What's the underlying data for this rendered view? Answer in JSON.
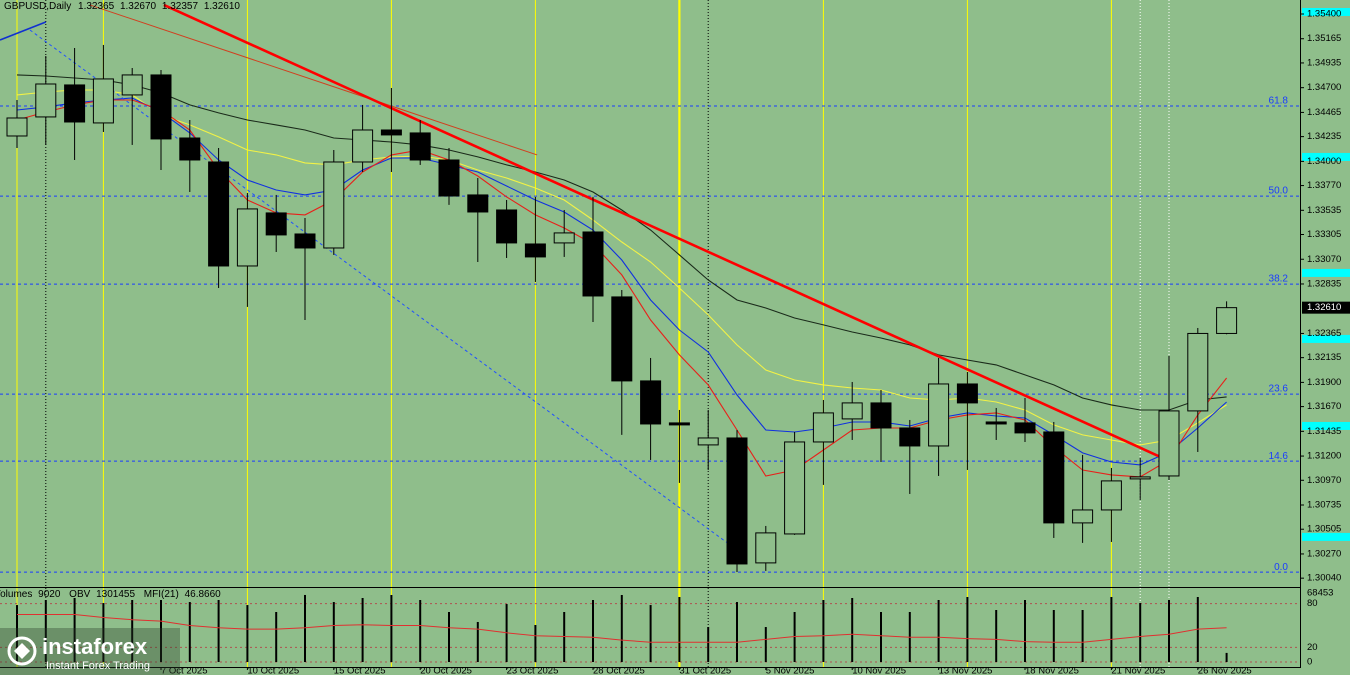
{
  "chart_data": [
    {
      "type": "candlestick",
      "symbol": "GBPUSD,Daily",
      "quote_labels": [
        "1.32365",
        "1.32670",
        "1.32357",
        "1.32610"
      ],
      "categories": [
        null,
        null,
        null,
        null,
        null,
        "7 Oct 2025",
        null,
        null,
        "10 Oct 2025",
        null,
        null,
        "15 Oct 2025",
        null,
        null,
        "20 Oct 2025",
        null,
        null,
        "23 Oct 2025",
        null,
        null,
        "28 Oct 2025",
        null,
        null,
        "31 Oct 2025",
        null,
        null,
        "5 Nov 2025",
        null,
        null,
        "10 Nov 2025",
        null,
        null,
        "13 Nov 2025",
        null,
        null,
        "18 Nov 2025",
        null,
        null,
        "21 Nov 2025",
        null,
        null,
        "26 Nov 2025",
        null
      ],
      "open": [
        1.34241,
        1.34422,
        1.34726,
        1.34365,
        1.34631,
        1.34821,
        1.34222,
        1.33994,
        1.33006,
        1.3351,
        1.3331,
        1.33177,
        1.33994,
        1.34298,
        1.3427,
        1.34013,
        1.33681,
        1.33538,
        1.33215,
        1.33225,
        1.33329,
        1.32712,
        1.31914,
        1.31515,
        1.31306,
        1.31372,
        1.30185,
        1.3046,
        1.31334,
        1.31553,
        1.31705,
        1.31467,
        1.31296,
        1.31885,
        1.31524,
        1.31515,
        1.31429,
        1.30565,
        1.30688,
        1.30983,
        1.31011,
        1.31629,
        1.32365
      ],
      "high": [
        1.34583,
        1.35001,
        1.35077,
        1.35106,
        1.34887,
        1.34868,
        1.34393,
        1.34127,
        1.337,
        1.33681,
        1.33462,
        1.34108,
        1.34536,
        1.34697,
        1.34393,
        1.34127,
        1.33842,
        1.33633,
        1.33662,
        1.33538,
        1.33662,
        1.32778,
        1.32132,
        1.31638,
        1.31638,
        1.31448,
        1.30536,
        1.31429,
        1.31733,
        1.31904,
        1.31828,
        1.31543,
        1.32132,
        1.31999,
        1.31657,
        1.31752,
        1.31524,
        1.31211,
        1.31087,
        1.31182,
        1.32151,
        1.32417,
        1.3267
      ],
      "low": [
        1.34127,
        1.34156,
        1.34013,
        1.34279,
        1.34156,
        1.33918,
        1.33709,
        1.32797,
        1.32617,
        1.33139,
        1.32493,
        1.33111,
        1.33899,
        1.33899,
        1.33966,
        1.33586,
        1.33044,
        1.33082,
        1.32854,
        1.33092,
        1.32474,
        1.31401,
        1.31163,
        1.30945,
        1.31068,
        1.30099,
        1.30109,
        1.30451,
        1.30926,
        1.31353,
        1.31144,
        1.3084,
        1.31011,
        1.31068,
        1.31353,
        1.31334,
        1.30422,
        1.30375,
        1.30384,
        1.30783,
        1.30973,
        1.31239,
        1.32357
      ],
      "close": [
        1.34412,
        1.34735,
        1.34374,
        1.34783,
        1.34821,
        1.34213,
        1.34013,
        1.33006,
        1.33548,
        1.33301,
        1.33177,
        1.33994,
        1.34298,
        1.34251,
        1.34013,
        1.33671,
        1.33519,
        1.33225,
        1.33092,
        1.3332,
        1.32721,
        1.31914,
        1.31505,
        1.31496,
        1.31372,
        1.30175,
        1.3047,
        1.31334,
        1.3161,
        1.31705,
        1.31467,
        1.31296,
        1.31885,
        1.31705,
        1.31505,
        1.3142,
        1.30565,
        1.30688,
        1.30964,
        1.31002,
        1.31629,
        1.32365,
        1.3261
      ],
      "up_color": "#8fbe8b",
      "down_color": "#000000",
      "ylim": [
        1.29956,
        1.35533
      ],
      "yticks": [
        {
          "value": 1.354,
          "label": "1.35400"
        },
        {
          "value": 1.35165,
          "label": "1.35165"
        },
        {
          "value": 1.34935,
          "label": "1.34935"
        },
        {
          "value": 1.347,
          "label": "1.34700"
        },
        {
          "value": 1.34465,
          "label": "1.34465"
        },
        {
          "value": 1.34235,
          "label": "1.34235"
        },
        {
          "value": 1.34,
          "label": "1.34000"
        },
        {
          "value": 1.3377,
          "label": "1.33770"
        },
        {
          "value": 1.33535,
          "label": "1.33535"
        },
        {
          "value": 1.33305,
          "label": "1.33305"
        },
        {
          "value": 1.3307,
          "label": "1.33070"
        },
        {
          "value": 1.32835,
          "label": "1.32835"
        },
        {
          "value": 1.32365,
          "label": "1.32365"
        },
        {
          "value": 1.32135,
          "label": "1.32135"
        },
        {
          "value": 1.319,
          "label": "1.31900"
        },
        {
          "value": 1.3167,
          "label": "1.31670"
        },
        {
          "value": 1.31435,
          "label": "1.31435"
        },
        {
          "value": 1.312,
          "label": "1.31200"
        },
        {
          "value": 1.3097,
          "label": "1.30970"
        },
        {
          "value": 1.30735,
          "label": "1.30735"
        },
        {
          "value": 1.30505,
          "label": "1.30505"
        },
        {
          "value": 1.3027,
          "label": "1.30270"
        },
        {
          "value": 1.3004,
          "label": "1.30040"
        }
      ],
      "level_markers": [
        1.35419,
        1.34042,
        1.3294,
        1.32313,
        1.31486,
        1.30432
      ],
      "level_marker_color": "#00ffff",
      "fib_levels": [
        {
          "label": "61.8",
          "value": 1.34526
        },
        {
          "label": "50.0",
          "value": 1.3367
        },
        {
          "label": "38.2",
          "value": 1.32834
        },
        {
          "label": "23.6",
          "value": 1.31789
        },
        {
          "label": "14.6",
          "value": 1.31152
        },
        {
          "label": "0.0",
          "value": 1.30097
        }
      ],
      "fib_color": "#1a3cff",
      "lines": [
        {
          "color": "#1a2a1a",
          "values": [
            1.34821,
            1.34811,
            1.34792,
            1.34773,
            1.34726,
            1.3465,
            1.34536,
            1.3446,
            1.34393,
            1.34346,
            1.34298,
            1.34222,
            1.34203,
            1.34184,
            1.34156,
            1.34108,
            1.34042,
            1.33966,
            1.33899,
            1.33823,
            1.33709,
            1.33538,
            1.33348,
            1.33111,
            1.32873,
            1.32683,
            1.32607,
            1.32512,
            1.32446,
            1.32379,
            1.32322,
            1.32256,
            1.32161,
            1.32113,
            1.32066,
            1.31971,
            1.31876,
            1.31752,
            1.31686,
            1.31638,
            1.31638,
            1.31733,
            1.31762
          ]
        },
        {
          "color": "#f2f246",
          "values": [
            1.34631,
            1.34659,
            1.34678,
            1.34678,
            1.34631,
            1.34441,
            1.34346,
            1.34232,
            1.34108,
            1.34061,
            1.33985,
            1.33966,
            1.34013,
            1.34042,
            1.34051,
            1.34013,
            1.33918,
            1.33842,
            1.33747,
            1.33633,
            1.33443,
            1.33234,
            1.33044,
            1.32797,
            1.32541,
            1.32256,
            1.32018,
            1.31923,
            1.31876,
            1.31847,
            1.31828,
            1.31752,
            1.31733,
            1.31752,
            1.31714,
            1.31638,
            1.31496,
            1.31401,
            1.31353,
            1.31306,
            1.31353,
            1.31515,
            1.31686
          ]
        },
        {
          "color": "#1030e0",
          "values": [
            1.34488,
            1.34517,
            1.34555,
            1.34583,
            1.34602,
            1.34469,
            1.3427,
            1.34013,
            1.33823,
            1.33728,
            1.33681,
            1.33728,
            1.33918,
            1.34032,
            1.34032,
            1.33966,
            1.33899,
            1.33766,
            1.33633,
            1.33519,
            1.33348,
            1.33063,
            1.32683,
            1.32398,
            1.32189,
            1.31781,
            1.31448,
            1.31429,
            1.31467,
            1.31524,
            1.31524,
            1.31486,
            1.31562,
            1.3161,
            1.31581,
            1.31562,
            1.31401,
            1.3123,
            1.31144,
            1.31116,
            1.31239,
            1.31467,
            1.31714
          ]
        },
        {
          "color": "#e8201a",
          "values": [
            1.34393,
            1.34469,
            1.34536,
            1.34583,
            1.34583,
            1.34488,
            1.34298,
            1.33918,
            1.33633,
            1.3351,
            1.33491,
            1.33633,
            1.33899,
            1.34061,
            1.34108,
            1.34013,
            1.33861,
            1.33662,
            1.33491,
            1.33367,
            1.33215,
            1.32921,
            1.32493,
            1.32161,
            1.31876,
            1.31448,
            1.31011,
            1.31068,
            1.31258,
            1.31448,
            1.31467,
            1.31467,
            1.31543,
            1.31591,
            1.3161,
            1.31543,
            1.31287,
            1.31068,
            1.31021,
            1.31002,
            1.31163,
            1.31591,
            1.31942
          ]
        }
      ],
      "trendlines": [
        {
          "color": "#d04020",
          "width": 1,
          "dash": "none",
          "x": [
            2.53,
            18.06
          ],
          "y": [
            1.35486,
            1.34061
          ]
        },
        {
          "color": "#2050ff",
          "width": 1,
          "dash": "3,3",
          "x": [
            0.45,
            24.76
          ],
          "y": [
            1.35248,
            1.30356
          ]
        },
        {
          "color": "#1030d0",
          "width": 1.6,
          "dash": "none",
          "x": [
            -0.59,
            1.0
          ],
          "y": [
            1.35153,
            1.35324
          ]
        },
        {
          "color": "#ff0000",
          "width": 2.6,
          "dash": "none",
          "x": [
            5.1,
            39.7
          ],
          "y": [
            1.35486,
            1.31192
          ]
        }
      ],
      "grid": false
    },
    {
      "type": "indicator",
      "legend": [
        {
          "name": "Volumes",
          "value": 9020
        },
        {
          "name": "OBV",
          "value": 1301455
        },
        {
          "name": "MFI(21)",
          "value": 46.866,
          "label": "46.8660"
        }
      ],
      "volumes": [
        56500,
        61500,
        63500,
        58500,
        61500,
        61500,
        59500,
        61500,
        56500,
        49600,
        66500,
        59500,
        63500,
        66500,
        61500,
        49600,
        39700,
        57500,
        36700,
        49600,
        61500,
        66500,
        56500,
        64500,
        34700,
        59500,
        34700,
        49600,
        61500,
        63500,
        49600,
        49600,
        61500,
        64500,
        51600,
        61500,
        51600,
        51600,
        64500,
        58500,
        61500,
        64500,
        9020
      ],
      "volume_color": "#000000",
      "volume_ylim": [
        0,
        68453
      ],
      "mfi": [
        65,
        65,
        65,
        61,
        58,
        56,
        50,
        47,
        45,
        45,
        47,
        50,
        51,
        50,
        50,
        47,
        45,
        40,
        36,
        35,
        34,
        30,
        27,
        27,
        27,
        27,
        31,
        35,
        36,
        38,
        36,
        34,
        34,
        32,
        31,
        28,
        27,
        27,
        31,
        35,
        38,
        45,
        46.866
      ],
      "mfi_color": "#e03030",
      "ylim": [
        0,
        100
      ],
      "yticks": [
        0,
        20,
        80
      ]
    }
  ],
  "watermark": {
    "brand": "instaforex",
    "tagline": "Instant Forex Trading"
  }
}
